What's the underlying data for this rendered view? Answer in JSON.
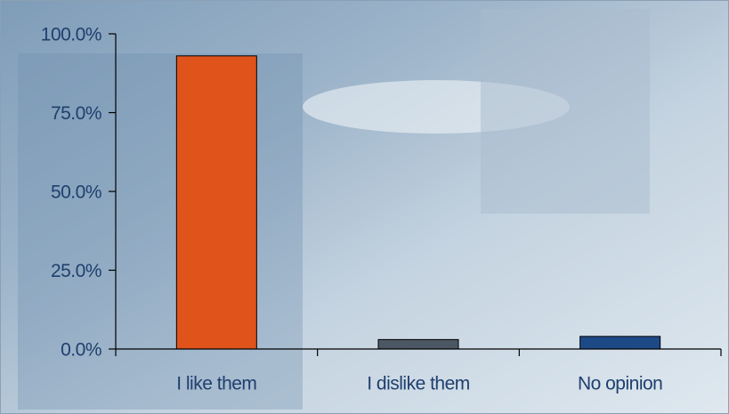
{
  "chart_data": {
    "type": "bar",
    "categories": [
      "I like them",
      "I dislike them",
      "No opinion"
    ],
    "values": [
      93,
      3,
      4
    ],
    "colors": [
      "#e0531a",
      "#4b5763",
      "#1d4a86"
    ],
    "ylim": [
      0,
      100
    ],
    "yticks": [
      {
        "value": 0,
        "label": "0.0%"
      },
      {
        "value": 25,
        "label": "25.0%"
      },
      {
        "value": 50,
        "label": "50.0%"
      },
      {
        "value": 75,
        "label": "75.0%"
      },
      {
        "value": 100,
        "label": "100.0%"
      }
    ],
    "grid": false
  }
}
